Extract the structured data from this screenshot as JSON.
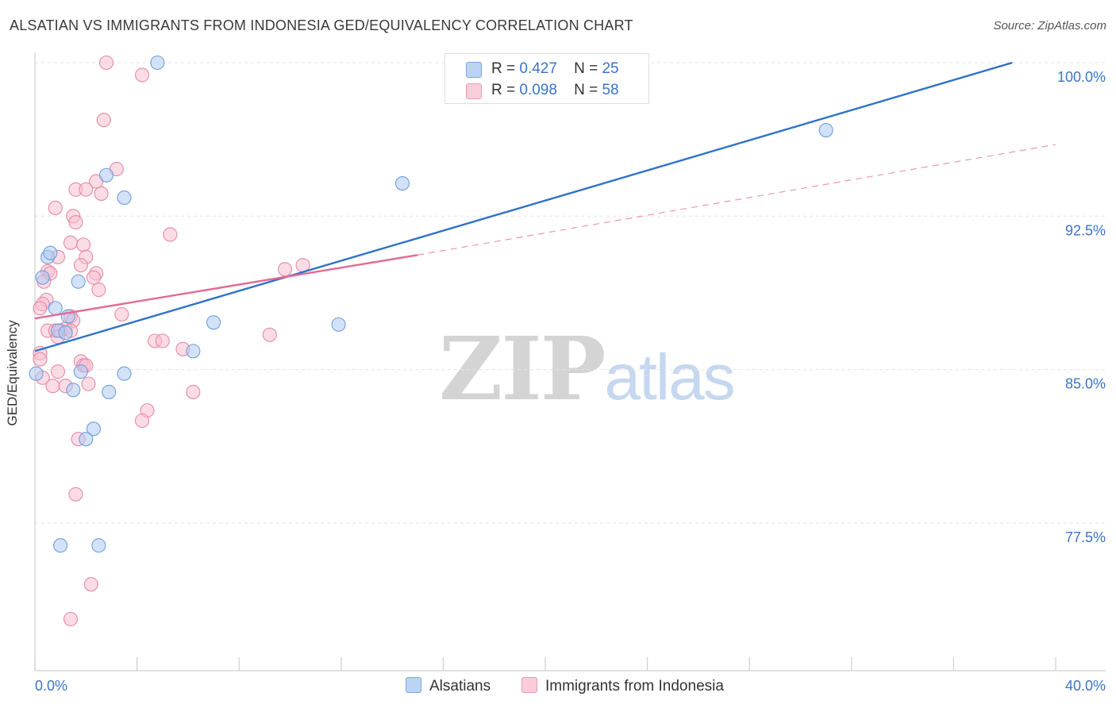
{
  "title": "ALSATIAN VS IMMIGRANTS FROM INDONESIA GED/EQUIVALENCY CORRELATION CHART",
  "source": "Source: ZipAtlas.com",
  "watermark": {
    "part1": "ZIP",
    "part2": "atlas"
  },
  "legend": {
    "rows": [
      {
        "r_label": "R =",
        "r_value": "0.427",
        "n_label": "N =",
        "n_value": "25"
      },
      {
        "r_label": "R =",
        "r_value": "0.098",
        "n_label": "N =",
        "n_value": "58"
      }
    ]
  },
  "bottom_legend": {
    "series1": "Alsatians",
    "series2": "Immigrants from Indonesia"
  },
  "colors": {
    "blue_fill": "#aecbf2",
    "blue_stroke": "#6f9fdc",
    "blue_line": "#2f72c8",
    "pink_fill": "#f7c0d0",
    "pink_stroke": "#e68aa6",
    "pink_line": "#e46a93",
    "tick_label": "#3b74c9"
  },
  "chart_data": {
    "type": "scatter",
    "title": "ALSATIAN VS IMMIGRANTS FROM INDONESIA GED/EQUIVALENCY CORRELATION CHART",
    "xlabel": "",
    "ylabel": "GED/Equivalency",
    "xlim": [
      0,
      40
    ],
    "ylim": [
      70.2,
      101.5
    ],
    "x_tick_labels": [
      "0.0%",
      "40.0%"
    ],
    "y_ticks": [
      {
        "value": 100.0,
        "label": "100.0%"
      },
      {
        "value": 92.5,
        "label": "92.5%"
      },
      {
        "value": 85.0,
        "label": "85.0%"
      },
      {
        "value": 77.5,
        "label": "77.5%"
      }
    ],
    "series": [
      {
        "name": "Alsatians",
        "r": 0.427,
        "n": 25,
        "points": [
          [
            4.8,
            100.0
          ],
          [
            2.8,
            94.5
          ],
          [
            3.5,
            93.4
          ],
          [
            0.5,
            90.5
          ],
          [
            0.6,
            90.7
          ],
          [
            0.3,
            89.5
          ],
          [
            1.7,
            89.3
          ],
          [
            0.8,
            88.0
          ],
          [
            1.3,
            87.6
          ],
          [
            0.9,
            86.9
          ],
          [
            7.0,
            87.3
          ],
          [
            6.2,
            85.9
          ],
          [
            1.8,
            84.9
          ],
          [
            3.5,
            84.8
          ],
          [
            1.5,
            84.0
          ],
          [
            2.9,
            83.9
          ],
          [
            0.05,
            84.8
          ],
          [
            2.3,
            82.1
          ],
          [
            2.0,
            81.6
          ],
          [
            1.0,
            76.4
          ],
          [
            2.5,
            76.4
          ],
          [
            14.4,
            94.1
          ],
          [
            11.9,
            87.2
          ],
          [
            31.0,
            96.7
          ],
          [
            1.2,
            86.8
          ]
        ],
        "trend": {
          "x": [
            0,
            38.3
          ],
          "y": [
            85.9,
            100.0
          ],
          "style": "solid"
        }
      },
      {
        "name": "Immigrants from Indonesia",
        "r": 0.098,
        "n": 58,
        "points": [
          [
            2.8,
            100.0
          ],
          [
            4.2,
            99.4
          ],
          [
            2.7,
            97.2
          ],
          [
            3.2,
            94.8
          ],
          [
            2.4,
            94.2
          ],
          [
            1.6,
            93.8
          ],
          [
            2.0,
            93.8
          ],
          [
            2.6,
            93.6
          ],
          [
            0.8,
            92.9
          ],
          [
            1.5,
            92.5
          ],
          [
            1.6,
            92.2
          ],
          [
            5.3,
            91.6
          ],
          [
            1.4,
            91.2
          ],
          [
            1.9,
            91.1
          ],
          [
            0.9,
            90.5
          ],
          [
            2.0,
            90.5
          ],
          [
            1.8,
            90.1
          ],
          [
            10.5,
            90.1
          ],
          [
            9.8,
            89.9
          ],
          [
            0.5,
            89.8
          ],
          [
            0.6,
            89.7
          ],
          [
            2.4,
            89.7
          ],
          [
            2.3,
            89.5
          ],
          [
            0.35,
            89.3
          ],
          [
            2.5,
            88.9
          ],
          [
            0.45,
            88.4
          ],
          [
            0.3,
            88.2
          ],
          [
            0.2,
            88.0
          ],
          [
            3.4,
            87.7
          ],
          [
            1.4,
            87.6
          ],
          [
            1.5,
            87.4
          ],
          [
            1.2,
            87.0
          ],
          [
            0.5,
            86.9
          ],
          [
            0.8,
            86.9
          ],
          [
            1.0,
            86.9
          ],
          [
            1.4,
            86.9
          ],
          [
            9.2,
            86.7
          ],
          [
            0.9,
            86.6
          ],
          [
            4.7,
            86.4
          ],
          [
            5.0,
            86.4
          ],
          [
            5.8,
            86.0
          ],
          [
            0.2,
            85.8
          ],
          [
            0.2,
            85.5
          ],
          [
            1.8,
            85.4
          ],
          [
            1.9,
            85.2
          ],
          [
            2.0,
            85.2
          ],
          [
            0.9,
            84.9
          ],
          [
            0.3,
            84.6
          ],
          [
            0.7,
            84.2
          ],
          [
            1.2,
            84.2
          ],
          [
            2.1,
            84.3
          ],
          [
            6.2,
            83.9
          ],
          [
            4.4,
            83.0
          ],
          [
            4.2,
            82.5
          ],
          [
            1.7,
            81.6
          ],
          [
            1.6,
            78.9
          ],
          [
            2.2,
            74.5
          ],
          [
            1.4,
            72.8
          ]
        ],
        "trend_solid": {
          "x": [
            0,
            15.0
          ],
          "y": [
            87.5,
            90.6
          ]
        },
        "trend_dashed": {
          "x": [
            15.0,
            40.0
          ],
          "y": [
            90.6,
            96.0
          ]
        }
      }
    ]
  }
}
